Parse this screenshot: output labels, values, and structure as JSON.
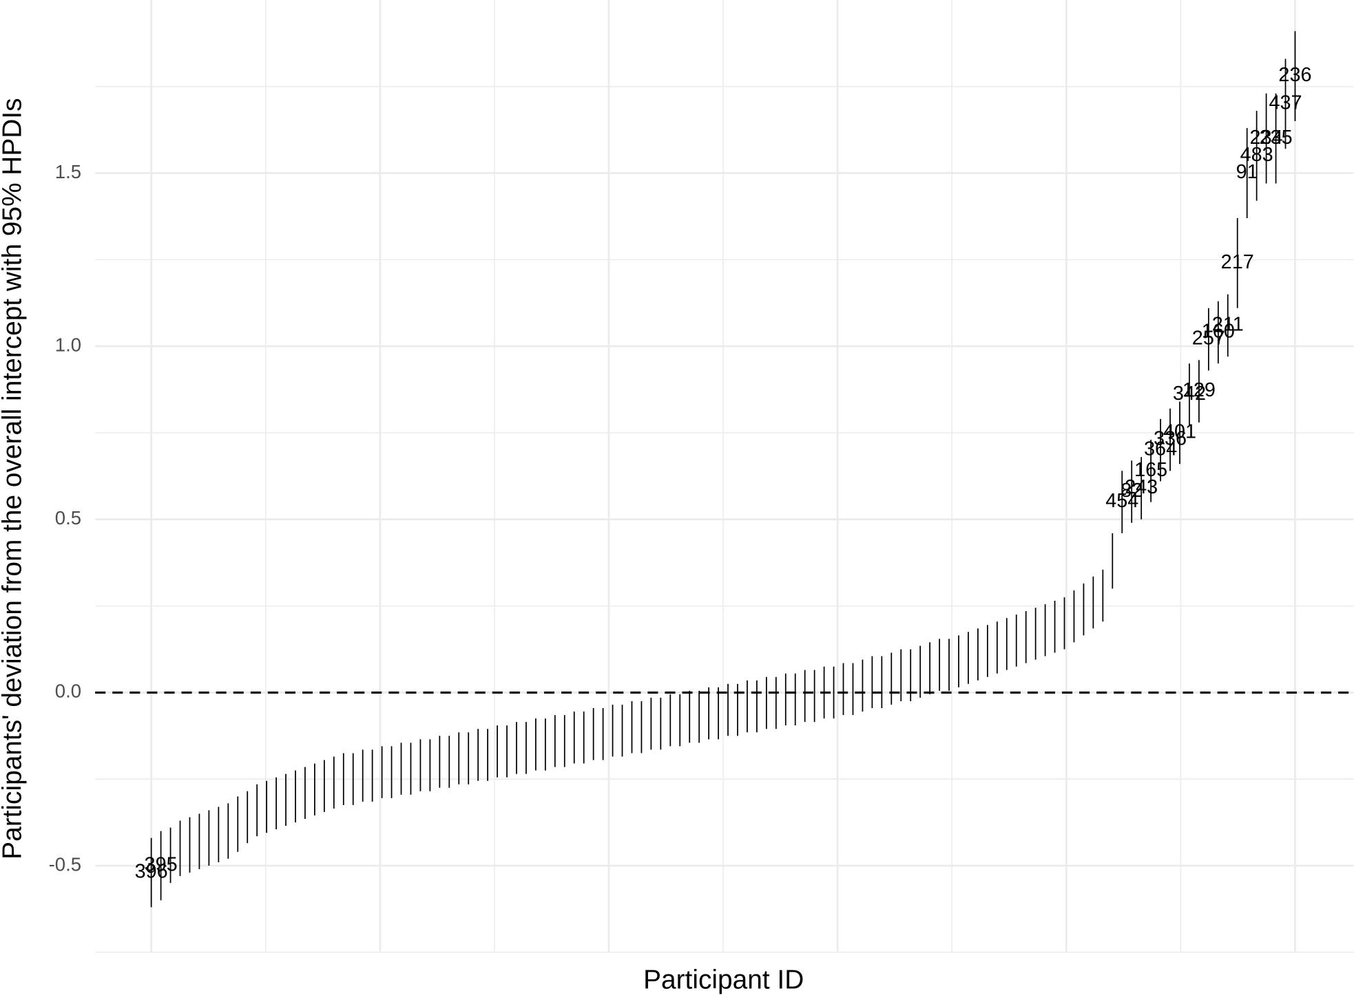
{
  "chart_data": {
    "type": "errorbar",
    "xlabel": "Participant ID",
    "ylabel": "Participants' deviation from the overall intercept with 95% HPDIs",
    "ylim": [
      -0.75,
      1.95
    ],
    "yticks": [
      -0.5,
      {
        "value": 0,
        "label": "0.0"
      },
      0.5,
      {
        "value": 1,
        "label": "1.0"
      },
      1.5
    ],
    "minor_yticks": [
      -0.75,
      -0.25,
      0.25,
      0.75,
      1.25,
      1.75
    ],
    "hline": 0,
    "grid": true,
    "color": "#000000",
    "values": [
      -0.52,
      -0.5,
      -0.47,
      -0.45,
      -0.44,
      -0.43,
      -0.42,
      -0.41,
      -0.4,
      -0.38,
      -0.36,
      -0.34,
      -0.33,
      -0.32,
      -0.31,
      -0.3,
      -0.29,
      -0.28,
      -0.27,
      -0.26,
      -0.25,
      -0.25,
      -0.24,
      -0.24,
      -0.23,
      -0.23,
      -0.22,
      -0.22,
      -0.21,
      -0.21,
      -0.2,
      -0.2,
      -0.19,
      -0.19,
      -0.18,
      -0.18,
      -0.17,
      -0.17,
      -0.16,
      -0.16,
      -0.15,
      -0.15,
      -0.14,
      -0.14,
      -0.13,
      -0.13,
      -0.12,
      -0.12,
      -0.11,
      -0.11,
      -0.1,
      -0.1,
      -0.09,
      -0.09,
      -0.08,
      -0.08,
      -0.07,
      -0.07,
      -0.06,
      -0.06,
      -0.05,
      -0.05,
      -0.04,
      -0.04,
      -0.03,
      -0.03,
      -0.02,
      -0.02,
      -0.01,
      -0.01,
      0,
      0,
      0.01,
      0.01,
      0.02,
      0.03,
      0.03,
      0.04,
      0.05,
      0.05,
      0.06,
      0.07,
      0.08,
      0.08,
      0.09,
      0.1,
      0.11,
      0.12,
      0.13,
      0.14,
      0.15,
      0.16,
      0.17,
      0.18,
      0.19,
      0.2,
      0.22,
      0.24,
      0.26,
      0.28,
      0.38,
      0.55,
      0.58,
      0.59,
      0.64,
      0.7,
      0.73,
      0.75,
      0.86,
      0.87,
      1.02,
      1.04,
      1.06,
      1.24,
      1.5,
      1.55,
      1.6,
      1.6,
      1.7,
      1.78
    ],
    "errors": [
      0.1,
      0.1,
      0.08,
      0.08,
      0.08,
      0.08,
      0.08,
      0.08,
      0.08,
      0.08,
      0.075,
      0.075,
      0.075,
      0.075,
      0.075,
      0.075,
      0.075,
      0.075,
      0.075,
      0.075,
      0.075,
      0.075,
      0.075,
      0.075,
      0.075,
      0.075,
      0.075,
      0.075,
      0.075,
      0.075,
      0.075,
      0.075,
      0.075,
      0.075,
      0.075,
      0.075,
      0.075,
      0.075,
      0.075,
      0.075,
      0.075,
      0.075,
      0.075,
      0.075,
      0.075,
      0.075,
      0.075,
      0.075,
      0.075,
      0.075,
      0.075,
      0.075,
      0.075,
      0.075,
      0.075,
      0.075,
      0.075,
      0.075,
      0.075,
      0.075,
      0.075,
      0.075,
      0.075,
      0.075,
      0.075,
      0.075,
      0.075,
      0.075,
      0.075,
      0.075,
      0.075,
      0.075,
      0.075,
      0.075,
      0.075,
      0.075,
      0.075,
      0.075,
      0.075,
      0.075,
      0.075,
      0.075,
      0.075,
      0.075,
      0.075,
      0.075,
      0.075,
      0.075,
      0.075,
      0.075,
      0.075,
      0.075,
      0.075,
      0.075,
      0.075,
      0.075,
      0.075,
      0.075,
      0.075,
      0.075,
      0.08,
      0.09,
      0.09,
      0.09,
      0.09,
      0.09,
      0.09,
      0.09,
      0.09,
      0.09,
      0.09,
      0.09,
      0.09,
      0.13,
      0.13,
      0.13,
      0.13,
      0.13,
      0.13,
      0.13
    ],
    "labels": [
      "396",
      "395",
      null,
      null,
      null,
      null,
      null,
      null,
      null,
      null,
      null,
      null,
      null,
      null,
      null,
      null,
      null,
      null,
      null,
      null,
      null,
      null,
      null,
      null,
      null,
      null,
      null,
      null,
      null,
      null,
      null,
      null,
      null,
      null,
      null,
      null,
      null,
      null,
      null,
      null,
      null,
      null,
      null,
      null,
      null,
      null,
      null,
      null,
      null,
      null,
      null,
      null,
      null,
      null,
      null,
      null,
      null,
      null,
      null,
      null,
      null,
      null,
      null,
      null,
      null,
      null,
      null,
      null,
      null,
      null,
      null,
      null,
      null,
      null,
      null,
      null,
      null,
      null,
      null,
      null,
      null,
      null,
      null,
      null,
      null,
      null,
      null,
      null,
      null,
      null,
      null,
      null,
      null,
      null,
      null,
      null,
      null,
      null,
      null,
      null,
      null,
      "454",
      "82",
      "243",
      "165",
      "364",
      "336",
      "401",
      "342",
      "129",
      "257",
      "160",
      "211",
      "217",
      "91",
      "483",
      "234",
      "235",
      "437",
      "236"
    ]
  }
}
